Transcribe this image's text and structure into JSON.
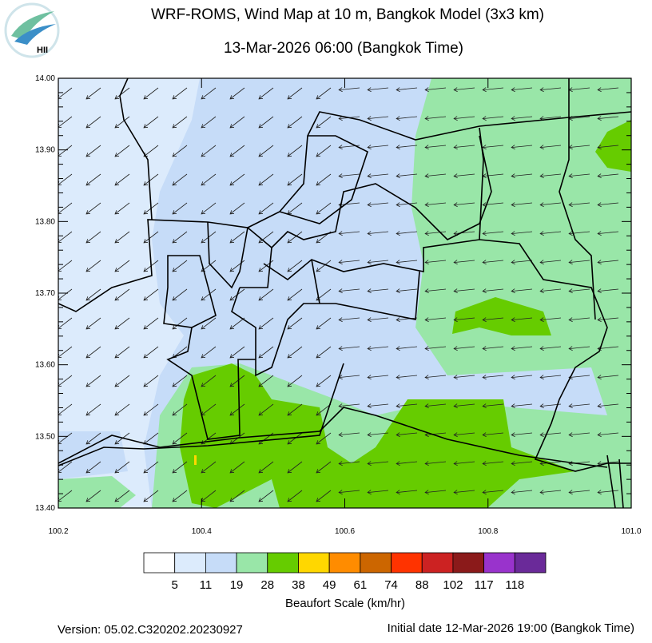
{
  "header": {
    "title": "WRF-ROMS, Wind Map at 10 m, Bangkok Model (3x3 km)",
    "subtitle": "13-Mar-2026 06:00 (Bangkok Time)",
    "logo_text": "HII"
  },
  "map": {
    "lat_labels": [
      "14.00",
      "13.90",
      "13.80",
      "13.70",
      "13.60",
      "13.50",
      "13.40"
    ],
    "lon_labels": [
      "100.2",
      "100.4",
      "100.6",
      "100.8",
      "101.0"
    ]
  },
  "legend": {
    "colors": [
      "#ffffff",
      "#dcebfc",
      "#c6dcf8",
      "#99e6a8",
      "#66cc00",
      "#ffd700",
      "#ff8c00",
      "#cc6600",
      "#ff3300",
      "#cc2222",
      "#8b1a1a",
      "#9933cc",
      "#6a2a99"
    ],
    "labels": [
      "5",
      "11",
      "19",
      "28",
      "38",
      "49",
      "61",
      "74",
      "88",
      "102",
      "117",
      "118"
    ],
    "title": "Beaufort Scale (km/hr)"
  },
  "footer": {
    "version": "Version: 05.02.C320202.20230927",
    "initial_date": "Initial date 12-Mar-2026 19:00 (Bangkok Time)"
  }
}
